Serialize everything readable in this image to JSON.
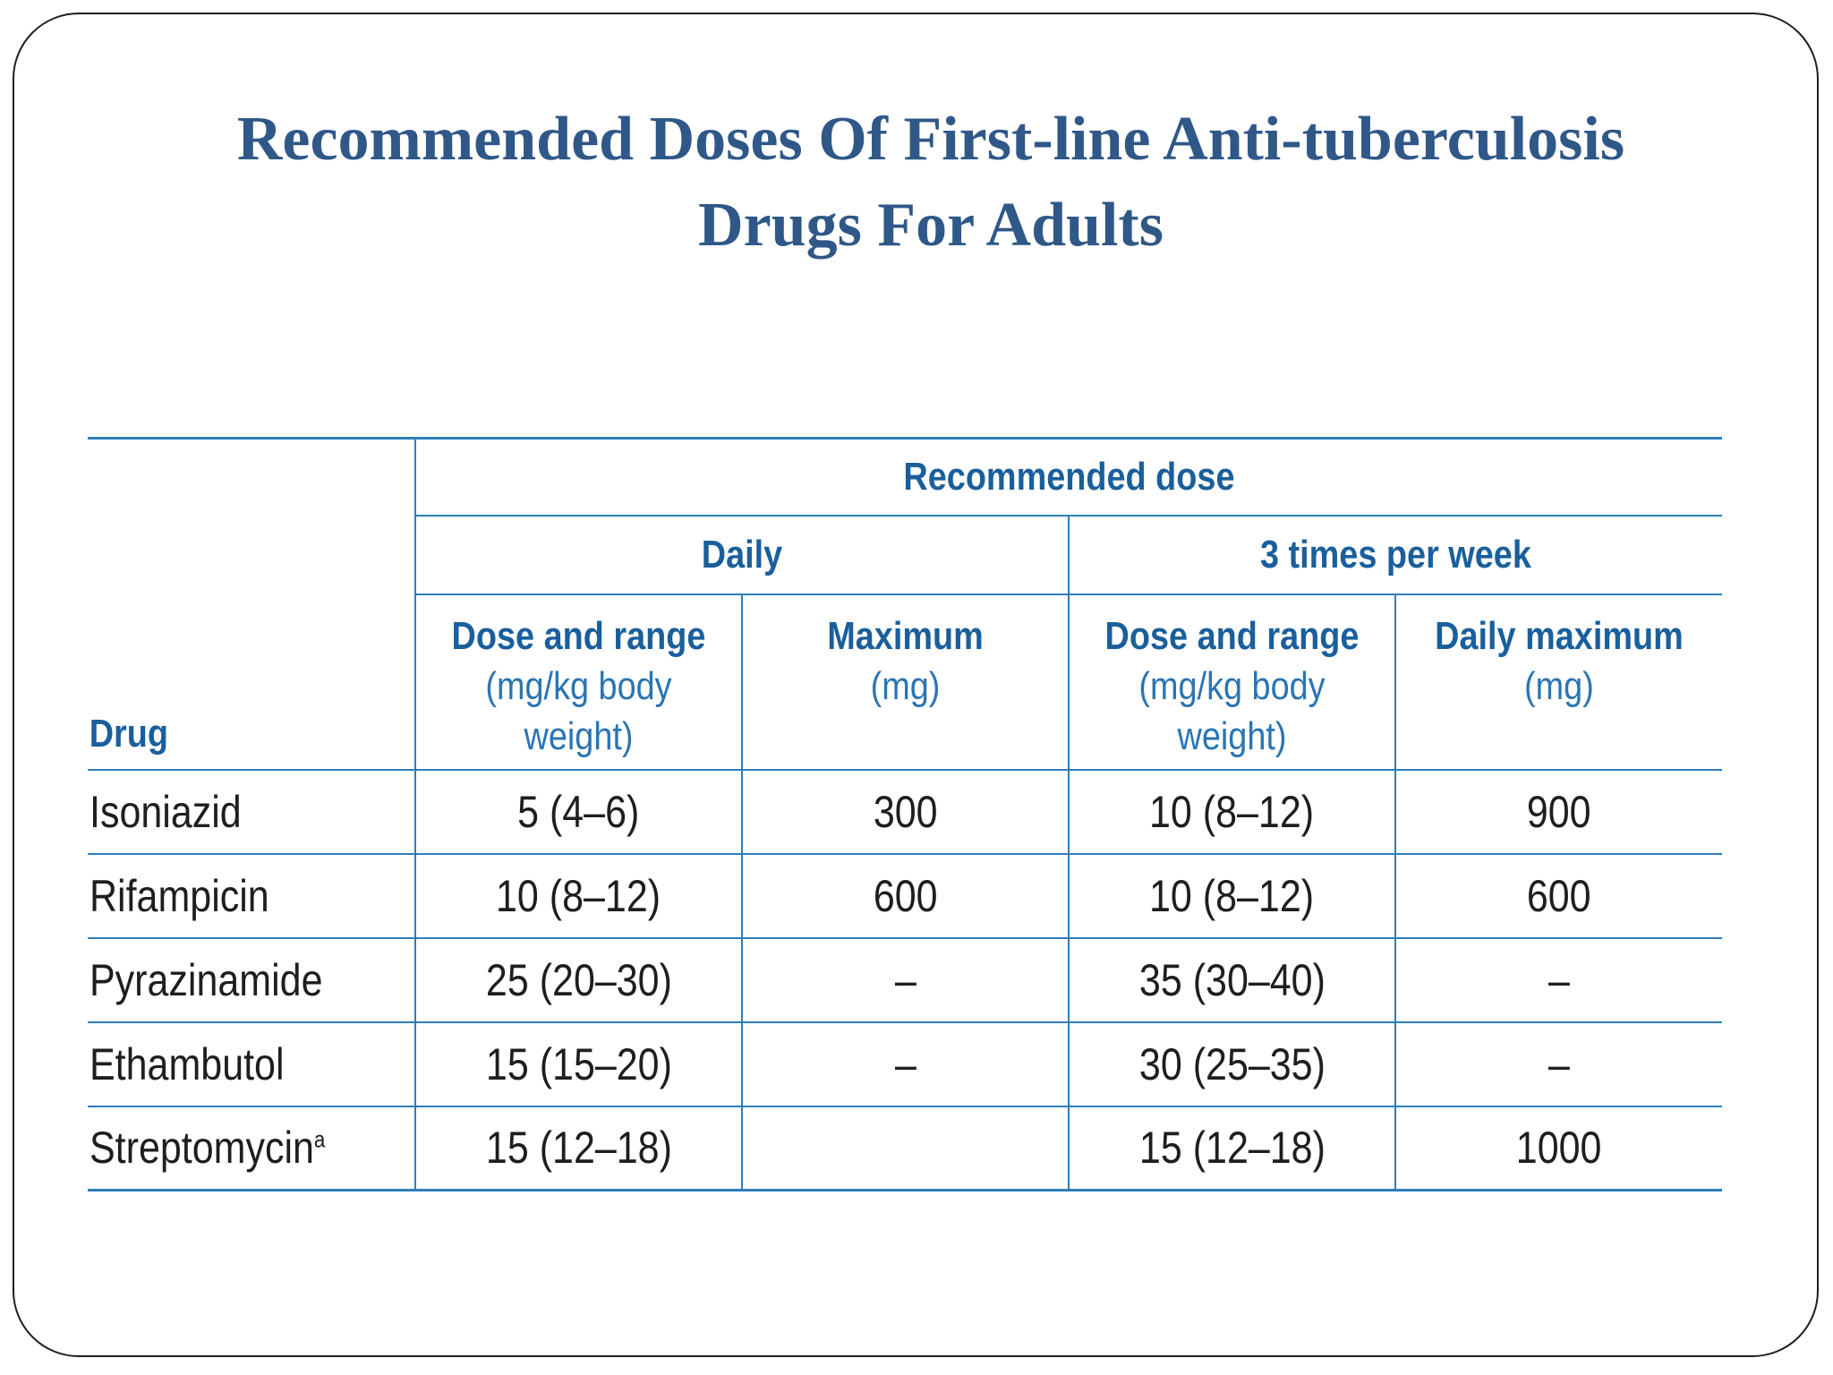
{
  "slide": {
    "title_line1": "Recommended Doses Of First-line Anti-tuberculosis",
    "title_line2": "Drugs For Adults"
  },
  "table": {
    "drug_header": "Drug",
    "group_header": "Recommended dose",
    "subgroups": {
      "daily": "Daily",
      "weekly": "3 times per week"
    },
    "columns": [
      {
        "main": "Dose and range",
        "sub_line1": "(mg/kg body",
        "sub_line2": "weight)"
      },
      {
        "main": "Maximum",
        "sub_line1": "(mg)",
        "sub_line2": ""
      },
      {
        "main": "Dose and range",
        "sub_line1": "(mg/kg body",
        "sub_line2": "weight)"
      },
      {
        "main": "Daily maximum",
        "sub_line1": "(mg)",
        "sub_line2": ""
      }
    ],
    "rows": [
      {
        "drug": "Isoniazid",
        "footnote": "",
        "daily_dose": "5 (4–6)",
        "daily_max": "300",
        "weekly_dose": "10 (8–12)",
        "weekly_max": "900"
      },
      {
        "drug": "Rifampicin",
        "footnote": "",
        "daily_dose": "10 (8–12)",
        "daily_max": "600",
        "weekly_dose": "10 (8–12)",
        "weekly_max": "600"
      },
      {
        "drug": "Pyrazinamide",
        "footnote": "",
        "daily_dose": "25 (20–30)",
        "daily_max": "–",
        "weekly_dose": "35 (30–40)",
        "weekly_max": "–"
      },
      {
        "drug": "Ethambutol",
        "footnote": "",
        "daily_dose": "15 (15–20)",
        "daily_max": "–",
        "weekly_dose": "30 (25–35)",
        "weekly_max": "–"
      },
      {
        "drug": "Streptomycin",
        "footnote": "a",
        "daily_dose": "15 (12–18)",
        "daily_max": "",
        "weekly_dose": "15 (12–18)",
        "weekly_max": "1000"
      }
    ]
  },
  "colors": {
    "title": "#2f5888",
    "header_text": "#1a5f9c",
    "rule_lines": "#2e7eb8",
    "body_text": "#1e1e1e"
  }
}
